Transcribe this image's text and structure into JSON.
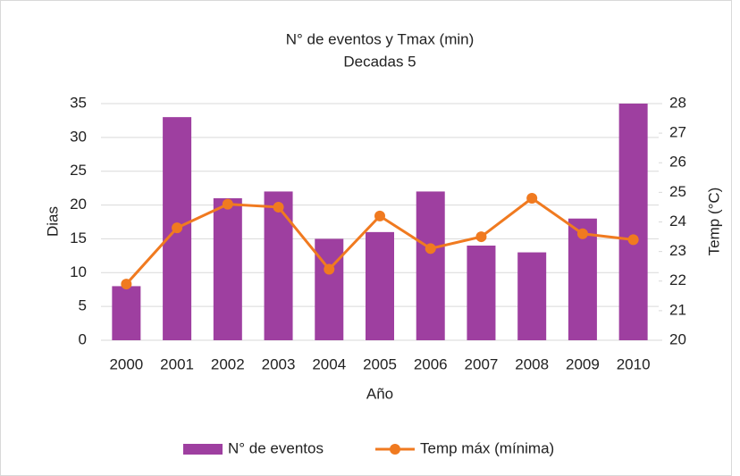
{
  "chart_data": {
    "type": "bar-line",
    "title": [
      "N° de eventos y Tmax (min)",
      "Decadas 5"
    ],
    "x_label": "Año",
    "y_label": "Dias",
    "y2_label": "Temp (°C)",
    "categories": [
      "2000",
      "2001",
      "2002",
      "2003",
      "2004",
      "2005",
      "2006",
      "2007",
      "2008",
      "2009",
      "2010"
    ],
    "series": [
      {
        "name": "N° de eventos",
        "type": "bar",
        "color": "#9e3fa0",
        "values": [
          8,
          33,
          21,
          22,
          15,
          16,
          22,
          14,
          13,
          18,
          35
        ]
      },
      {
        "name": "Temp máx (mínima)",
        "type": "line",
        "axis": "y2",
        "color": "#f07a20",
        "values": [
          21.9,
          23.8,
          24.6,
          24.5,
          22.4,
          24.2,
          23.1,
          23.5,
          24.8,
          23.6,
          23.4
        ]
      }
    ],
    "ylim": [
      0,
      35
    ],
    "yticks": [
      0,
      5,
      10,
      15,
      20,
      25,
      30,
      35
    ],
    "y2lim": [
      20,
      28
    ],
    "y2ticks": [
      20,
      21,
      22,
      23,
      24,
      25,
      26,
      27,
      28
    ],
    "grid": true,
    "legend": "bottom"
  }
}
